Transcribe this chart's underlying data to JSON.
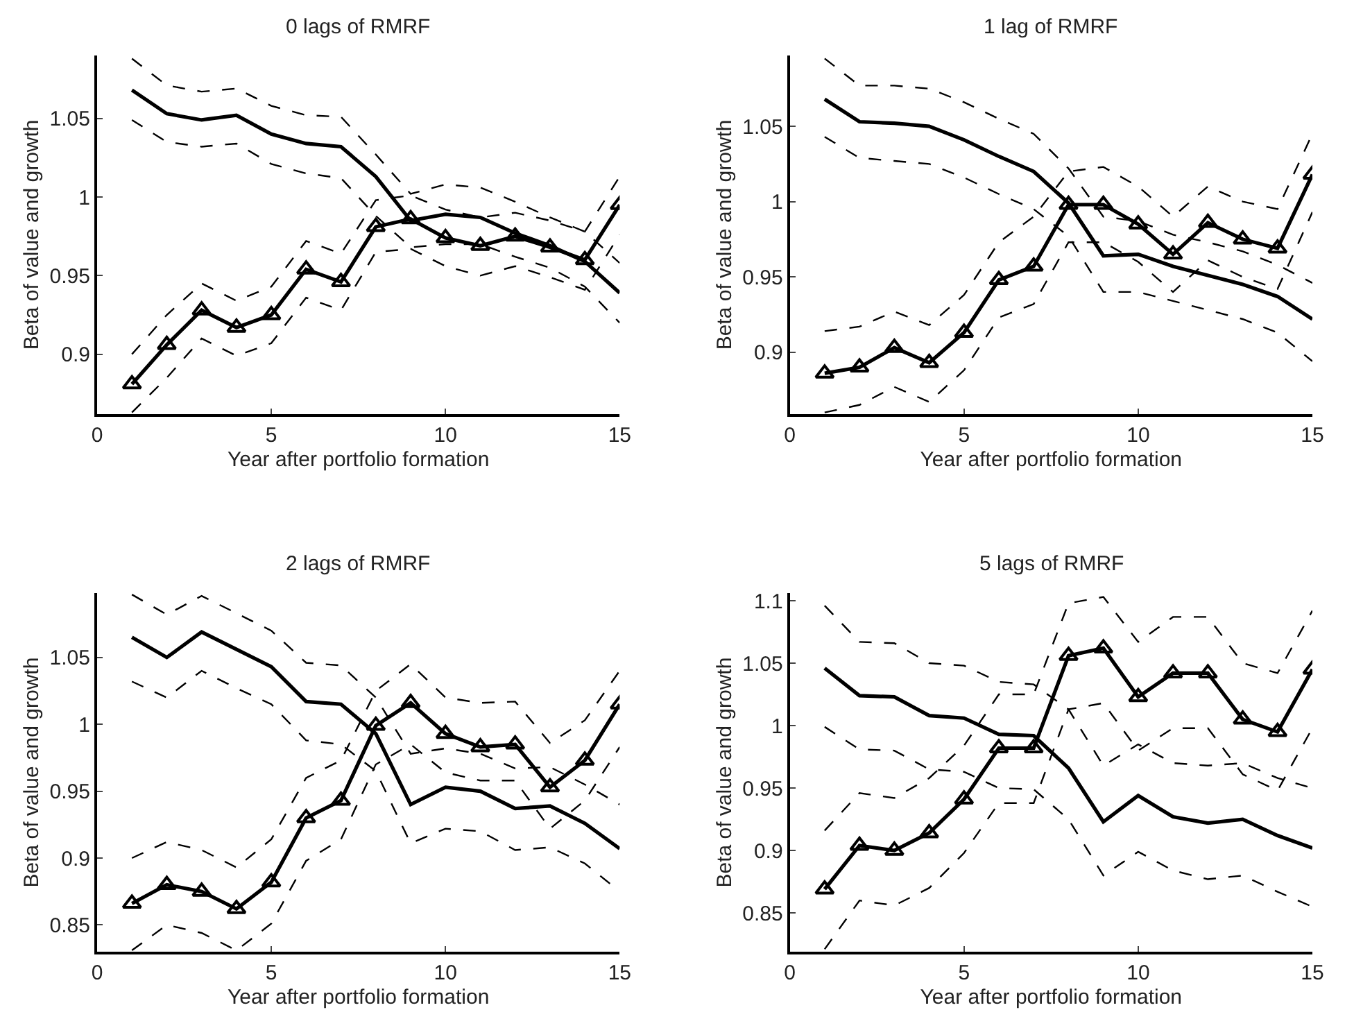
{
  "chart_data": [
    {
      "type": "line",
      "title": "0 lags of RMRF",
      "xlabel": "Year after portfolio formation",
      "ylabel": "Beta of value and growth",
      "x": [
        1,
        2,
        3,
        4,
        5,
        6,
        7,
        8,
        9,
        10,
        11,
        12,
        13,
        14,
        15
      ],
      "xlim": [
        0,
        15
      ],
      "xticks": [
        0,
        5,
        10,
        15
      ],
      "ylim": [
        0.862,
        1.09
      ],
      "yticks": [
        0.9,
        0.95,
        1,
        1.05
      ],
      "grid": false,
      "series": [
        {
          "color": "#000000",
          "marker": "none",
          "line_style": "solid",
          "values": [
            1.068,
            1.053,
            1.049,
            1.052,
            1.04,
            1.034,
            1.032,
            1.013,
            0.985,
            0.989,
            0.987,
            0.977,
            0.969,
            0.959,
            0.939
          ]
        },
        {
          "color": "#000000",
          "marker": "none",
          "line_style": "dashed",
          "values": [
            1.049,
            1.035,
            1.032,
            1.034,
            1.021,
            1.015,
            1.012,
            0.988,
            0.968,
            0.97,
            0.97,
            0.962,
            0.955,
            0.943,
            0.92
          ]
        },
        {
          "color": "#000000",
          "marker": "none",
          "line_style": "dashed",
          "values": [
            1.088,
            1.071,
            1.067,
            1.069,
            1.058,
            1.052,
            1.051,
            1.027,
            1.002,
            1.008,
            1.006,
            0.997,
            0.987,
            0.978,
            0.958
          ]
        },
        {
          "color": "#000000",
          "marker": "triangle",
          "line_style": "solid",
          "values": [
            0.881,
            0.906,
            0.928,
            0.917,
            0.925,
            0.954,
            0.946,
            0.981,
            0.986,
            0.974,
            0.969,
            0.975,
            0.968,
            0.96,
            0.995
          ]
        },
        {
          "color": "#000000",
          "marker": "none",
          "line_style": "dashed",
          "values": [
            0.863,
            0.885,
            0.91,
            0.899,
            0.907,
            0.936,
            0.928,
            0.965,
            0.967,
            0.956,
            0.95,
            0.956,
            0.949,
            0.941,
            0.976
          ]
        },
        {
          "color": "#000000",
          "marker": "none",
          "line_style": "dashed",
          "values": [
            0.9,
            0.925,
            0.945,
            0.934,
            0.943,
            0.972,
            0.964,
            0.998,
            1.001,
            0.992,
            0.987,
            0.99,
            0.985,
            0.978,
            1.013
          ]
        }
      ]
    },
    {
      "type": "line",
      "title": "1 lag of RMRF",
      "xlabel": "Year after portfolio formation",
      "ylabel": "Beta of value and growth",
      "x": [
        1,
        2,
        3,
        4,
        5,
        6,
        7,
        8,
        9,
        10,
        11,
        12,
        13,
        14,
        15
      ],
      "xlim": [
        0,
        15
      ],
      "xticks": [
        0,
        5,
        10,
        15
      ],
      "ylim": [
        0.859,
        1.097
      ],
      "yticks": [
        0.9,
        0.95,
        1,
        1.05
      ],
      "grid": false,
      "series": [
        {
          "color": "#000000",
          "marker": "none",
          "line_style": "solid",
          "values": [
            1.068,
            1.053,
            1.052,
            1.05,
            1.041,
            1.03,
            1.02,
            0.999,
            0.964,
            0.965,
            0.957,
            0.951,
            0.945,
            0.937,
            0.922
          ]
        },
        {
          "color": "#000000",
          "marker": "none",
          "line_style": "dashed",
          "values": [
            1.043,
            1.029,
            1.027,
            1.025,
            1.016,
            1.005,
            0.995,
            0.977,
            0.94,
            0.94,
            0.934,
            0.928,
            0.922,
            0.913,
            0.894
          ]
        },
        {
          "color": "#000000",
          "marker": "none",
          "line_style": "dashed",
          "values": [
            1.095,
            1.077,
            1.077,
            1.075,
            1.066,
            1.055,
            1.045,
            1.022,
            0.99,
            0.987,
            0.978,
            0.973,
            0.967,
            0.958,
            0.946
          ]
        },
        {
          "color": "#000000",
          "marker": "triangle",
          "line_style": "solid",
          "values": [
            0.886,
            0.89,
            0.903,
            0.893,
            0.913,
            0.948,
            0.957,
            0.998,
            0.998,
            0.985,
            0.965,
            0.986,
            0.975,
            0.969,
            1.018
          ]
        },
        {
          "color": "#000000",
          "marker": "none",
          "line_style": "dashed",
          "values": [
            0.86,
            0.865,
            0.877,
            0.867,
            0.888,
            0.923,
            0.932,
            0.973,
            0.973,
            0.96,
            0.94,
            0.961,
            0.95,
            0.942,
            0.993
          ]
        },
        {
          "color": "#000000",
          "marker": "none",
          "line_style": "dashed",
          "values": [
            0.914,
            0.917,
            0.927,
            0.918,
            0.938,
            0.973,
            0.99,
            1.02,
            1.023,
            1.01,
            0.99,
            1.01,
            1.0,
            0.995,
            1.045
          ]
        }
      ]
    },
    {
      "type": "line",
      "title": "2 lags of RMRF",
      "xlabel": "Year after portfolio formation",
      "ylabel": "Beta of value and growth",
      "x": [
        1,
        2,
        3,
        4,
        5,
        6,
        7,
        8,
        9,
        10,
        11,
        12,
        13,
        14,
        15
      ],
      "xlim": [
        0,
        15
      ],
      "xticks": [
        0,
        5,
        10,
        15
      ],
      "ylim": [
        0.83,
        1.098
      ],
      "yticks": [
        0.85,
        0.9,
        0.95,
        1,
        1.05
      ],
      "grid": false,
      "series": [
        {
          "color": "#000000",
          "marker": "none",
          "line_style": "solid",
          "values": [
            1.065,
            1.05,
            1.069,
            1.056,
            1.043,
            1.017,
            1.015,
            0.993,
            0.94,
            0.953,
            0.95,
            0.937,
            0.939,
            0.926,
            0.907
          ]
        },
        {
          "color": "#000000",
          "marker": "none",
          "line_style": "dashed",
          "values": [
            1.032,
            1.02,
            1.04,
            1.027,
            1.015,
            0.988,
            0.985,
            0.965,
            0.911,
            0.922,
            0.92,
            0.906,
            0.908,
            0.896,
            0.875
          ]
        },
        {
          "color": "#000000",
          "marker": "none",
          "line_style": "dashed",
          "values": [
            1.097,
            1.082,
            1.096,
            1.083,
            1.07,
            1.046,
            1.044,
            1.02,
            0.978,
            0.982,
            0.978,
            0.967,
            0.968,
            0.955,
            0.94
          ]
        },
        {
          "color": "#000000",
          "marker": "triangle",
          "line_style": "solid",
          "values": [
            0.866,
            0.88,
            0.875,
            0.862,
            0.882,
            0.93,
            0.943,
            0.999,
            1.016,
            0.993,
            0.983,
            0.985,
            0.953,
            0.973,
            1.015
          ]
        },
        {
          "color": "#000000",
          "marker": "none",
          "line_style": "dashed",
          "values": [
            0.831,
            0.85,
            0.844,
            0.831,
            0.851,
            0.898,
            0.914,
            0.97,
            0.985,
            0.964,
            0.958,
            0.958,
            0.922,
            0.943,
            0.983
          ]
        },
        {
          "color": "#000000",
          "marker": "none",
          "line_style": "dashed",
          "values": [
            0.9,
            0.912,
            0.906,
            0.893,
            0.914,
            0.96,
            0.973,
            1.025,
            1.045,
            1.02,
            1.016,
            1.017,
            0.986,
            1.003,
            1.04
          ]
        }
      ]
    },
    {
      "type": "line",
      "title": "5 lags of RMRF",
      "xlabel": "Year after portfolio formation",
      "ylabel": "Beta of value and growth",
      "x": [
        1,
        2,
        3,
        4,
        5,
        6,
        7,
        8,
        9,
        10,
        11,
        12,
        13,
        14,
        15
      ],
      "xlim": [
        0,
        15
      ],
      "xticks": [
        0,
        5,
        10,
        15
      ],
      "ylim": [
        0.819,
        1.106
      ],
      "yticks": [
        0.85,
        0.9,
        0.95,
        1,
        1.05,
        1.1
      ],
      "grid": false,
      "series": [
        {
          "color": "#000000",
          "marker": "none",
          "line_style": "solid",
          "values": [
            1.046,
            1.024,
            1.023,
            1.008,
            1.006,
            0.993,
            0.992,
            0.966,
            0.923,
            0.944,
            0.927,
            0.922,
            0.925,
            0.912,
            0.902
          ]
        },
        {
          "color": "#000000",
          "marker": "none",
          "line_style": "dashed",
          "values": [
            0.999,
            0.981,
            0.98,
            0.965,
            0.963,
            0.95,
            0.949,
            0.925,
            0.88,
            0.899,
            0.884,
            0.877,
            0.88,
            0.867,
            0.855
          ]
        },
        {
          "color": "#000000",
          "marker": "none",
          "line_style": "dashed",
          "values": [
            1.096,
            1.067,
            1.066,
            1.05,
            1.048,
            1.035,
            1.033,
            1.013,
            0.968,
            0.985,
            0.97,
            0.968,
            0.97,
            0.958,
            0.95
          ]
        },
        {
          "color": "#000000",
          "marker": "triangle",
          "line_style": "solid",
          "values": [
            0.869,
            0.904,
            0.9,
            0.914,
            0.941,
            0.982,
            0.982,
            1.056,
            1.062,
            1.023,
            1.042,
            1.042,
            1.005,
            0.995,
            1.045
          ]
        },
        {
          "color": "#000000",
          "marker": "none",
          "line_style": "dashed",
          "values": [
            0.821,
            0.86,
            0.856,
            0.87,
            0.898,
            0.938,
            0.938,
            1.013,
            1.018,
            0.98,
            0.998,
            0.998,
            0.961,
            0.948,
            0.998
          ]
        },
        {
          "color": "#000000",
          "marker": "none",
          "line_style": "dashed",
          "values": [
            0.916,
            0.946,
            0.942,
            0.958,
            0.984,
            1.025,
            1.025,
            1.098,
            1.103,
            1.067,
            1.087,
            1.087,
            1.05,
            1.042,
            1.092
          ]
        }
      ]
    }
  ]
}
